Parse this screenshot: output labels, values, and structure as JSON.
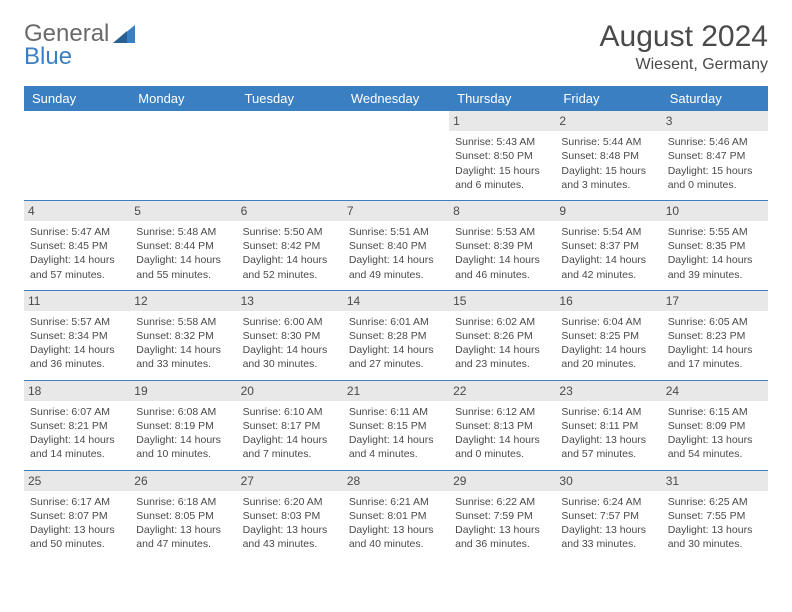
{
  "logo": {
    "part1": "General",
    "part2": "Blue"
  },
  "title": "August 2024",
  "location": "Wiesent, Germany",
  "colors": {
    "header_bg": "#3a7fc2",
    "header_text": "#ffffff",
    "daynum_bg": "#e8e8e8",
    "text": "#4a4a4a",
    "logo_gray": "#6a6a6a",
    "logo_blue": "#3a7fc2",
    "border": "#3a7fc2",
    "background": "#ffffff"
  },
  "typography": {
    "title_fontsize": 30,
    "location_fontsize": 16,
    "header_fontsize": 13,
    "cell_fontsize": 10.5,
    "daynum_fontsize": 12
  },
  "columns": [
    "Sunday",
    "Monday",
    "Tuesday",
    "Wednesday",
    "Thursday",
    "Friday",
    "Saturday"
  ],
  "weeks": [
    [
      {},
      {},
      {},
      {},
      {
        "day": "1",
        "sunrise": "Sunrise: 5:43 AM",
        "sunset": "Sunset: 8:50 PM",
        "daylight": "Daylight: 15 hours and 6 minutes."
      },
      {
        "day": "2",
        "sunrise": "Sunrise: 5:44 AM",
        "sunset": "Sunset: 8:48 PM",
        "daylight": "Daylight: 15 hours and 3 minutes."
      },
      {
        "day": "3",
        "sunrise": "Sunrise: 5:46 AM",
        "sunset": "Sunset: 8:47 PM",
        "daylight": "Daylight: 15 hours and 0 minutes."
      }
    ],
    [
      {
        "day": "4",
        "sunrise": "Sunrise: 5:47 AM",
        "sunset": "Sunset: 8:45 PM",
        "daylight": "Daylight: 14 hours and 57 minutes."
      },
      {
        "day": "5",
        "sunrise": "Sunrise: 5:48 AM",
        "sunset": "Sunset: 8:44 PM",
        "daylight": "Daylight: 14 hours and 55 minutes."
      },
      {
        "day": "6",
        "sunrise": "Sunrise: 5:50 AM",
        "sunset": "Sunset: 8:42 PM",
        "daylight": "Daylight: 14 hours and 52 minutes."
      },
      {
        "day": "7",
        "sunrise": "Sunrise: 5:51 AM",
        "sunset": "Sunset: 8:40 PM",
        "daylight": "Daylight: 14 hours and 49 minutes."
      },
      {
        "day": "8",
        "sunrise": "Sunrise: 5:53 AM",
        "sunset": "Sunset: 8:39 PM",
        "daylight": "Daylight: 14 hours and 46 minutes."
      },
      {
        "day": "9",
        "sunrise": "Sunrise: 5:54 AM",
        "sunset": "Sunset: 8:37 PM",
        "daylight": "Daylight: 14 hours and 42 minutes."
      },
      {
        "day": "10",
        "sunrise": "Sunrise: 5:55 AM",
        "sunset": "Sunset: 8:35 PM",
        "daylight": "Daylight: 14 hours and 39 minutes."
      }
    ],
    [
      {
        "day": "11",
        "sunrise": "Sunrise: 5:57 AM",
        "sunset": "Sunset: 8:34 PM",
        "daylight": "Daylight: 14 hours and 36 minutes."
      },
      {
        "day": "12",
        "sunrise": "Sunrise: 5:58 AM",
        "sunset": "Sunset: 8:32 PM",
        "daylight": "Daylight: 14 hours and 33 minutes."
      },
      {
        "day": "13",
        "sunrise": "Sunrise: 6:00 AM",
        "sunset": "Sunset: 8:30 PM",
        "daylight": "Daylight: 14 hours and 30 minutes."
      },
      {
        "day": "14",
        "sunrise": "Sunrise: 6:01 AM",
        "sunset": "Sunset: 8:28 PM",
        "daylight": "Daylight: 14 hours and 27 minutes."
      },
      {
        "day": "15",
        "sunrise": "Sunrise: 6:02 AM",
        "sunset": "Sunset: 8:26 PM",
        "daylight": "Daylight: 14 hours and 23 minutes."
      },
      {
        "day": "16",
        "sunrise": "Sunrise: 6:04 AM",
        "sunset": "Sunset: 8:25 PM",
        "daylight": "Daylight: 14 hours and 20 minutes."
      },
      {
        "day": "17",
        "sunrise": "Sunrise: 6:05 AM",
        "sunset": "Sunset: 8:23 PM",
        "daylight": "Daylight: 14 hours and 17 minutes."
      }
    ],
    [
      {
        "day": "18",
        "sunrise": "Sunrise: 6:07 AM",
        "sunset": "Sunset: 8:21 PM",
        "daylight": "Daylight: 14 hours and 14 minutes."
      },
      {
        "day": "19",
        "sunrise": "Sunrise: 6:08 AM",
        "sunset": "Sunset: 8:19 PM",
        "daylight": "Daylight: 14 hours and 10 minutes."
      },
      {
        "day": "20",
        "sunrise": "Sunrise: 6:10 AM",
        "sunset": "Sunset: 8:17 PM",
        "daylight": "Daylight: 14 hours and 7 minutes."
      },
      {
        "day": "21",
        "sunrise": "Sunrise: 6:11 AM",
        "sunset": "Sunset: 8:15 PM",
        "daylight": "Daylight: 14 hours and 4 minutes."
      },
      {
        "day": "22",
        "sunrise": "Sunrise: 6:12 AM",
        "sunset": "Sunset: 8:13 PM",
        "daylight": "Daylight: 14 hours and 0 minutes."
      },
      {
        "day": "23",
        "sunrise": "Sunrise: 6:14 AM",
        "sunset": "Sunset: 8:11 PM",
        "daylight": "Daylight: 13 hours and 57 minutes."
      },
      {
        "day": "24",
        "sunrise": "Sunrise: 6:15 AM",
        "sunset": "Sunset: 8:09 PM",
        "daylight": "Daylight: 13 hours and 54 minutes."
      }
    ],
    [
      {
        "day": "25",
        "sunrise": "Sunrise: 6:17 AM",
        "sunset": "Sunset: 8:07 PM",
        "daylight": "Daylight: 13 hours and 50 minutes."
      },
      {
        "day": "26",
        "sunrise": "Sunrise: 6:18 AM",
        "sunset": "Sunset: 8:05 PM",
        "daylight": "Daylight: 13 hours and 47 minutes."
      },
      {
        "day": "27",
        "sunrise": "Sunrise: 6:20 AM",
        "sunset": "Sunset: 8:03 PM",
        "daylight": "Daylight: 13 hours and 43 minutes."
      },
      {
        "day": "28",
        "sunrise": "Sunrise: 6:21 AM",
        "sunset": "Sunset: 8:01 PM",
        "daylight": "Daylight: 13 hours and 40 minutes."
      },
      {
        "day": "29",
        "sunrise": "Sunrise: 6:22 AM",
        "sunset": "Sunset: 7:59 PM",
        "daylight": "Daylight: 13 hours and 36 minutes."
      },
      {
        "day": "30",
        "sunrise": "Sunrise: 6:24 AM",
        "sunset": "Sunset: 7:57 PM",
        "daylight": "Daylight: 13 hours and 33 minutes."
      },
      {
        "day": "31",
        "sunrise": "Sunrise: 6:25 AM",
        "sunset": "Sunset: 7:55 PM",
        "daylight": "Daylight: 13 hours and 30 minutes."
      }
    ]
  ]
}
